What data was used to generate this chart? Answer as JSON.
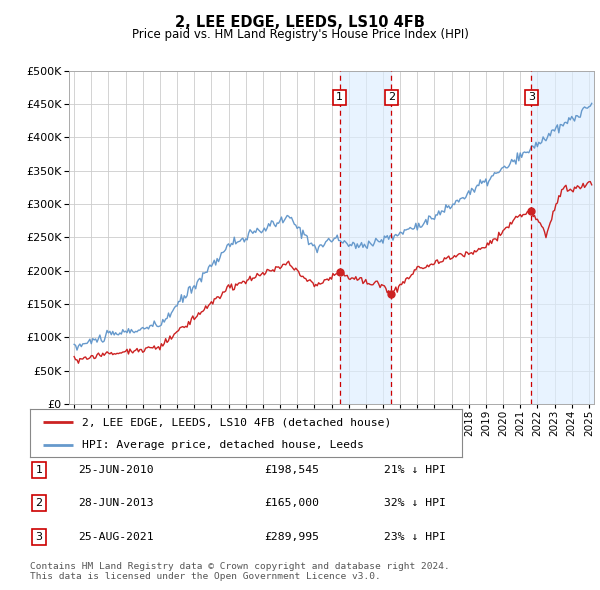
{
  "title": "2, LEE EDGE, LEEDS, LS10 4FB",
  "subtitle": "Price paid vs. HM Land Registry's House Price Index (HPI)",
  "hpi_label": "HPI: Average price, detached house, Leeds",
  "price_label": "2, LEE EDGE, LEEDS, LS10 4FB (detached house)",
  "footer": "Contains HM Land Registry data © Crown copyright and database right 2024.\nThis data is licensed under the Open Government Licence v3.0.",
  "sales": [
    {
      "num": 1,
      "date": "25-JUN-2010",
      "price": "£198,545",
      "pct": "21% ↓ HPI",
      "year": 2010.48
    },
    {
      "num": 2,
      "date": "28-JUN-2013",
      "price": "£165,000",
      "pct": "32% ↓ HPI",
      "year": 2013.48
    },
    {
      "num": 3,
      "date": "25-AUG-2021",
      "price": "£289,995",
      "pct": "23% ↓ HPI",
      "year": 2021.65
    }
  ],
  "sale_prices": [
    198545,
    165000,
    289995
  ],
  "ylim": [
    0,
    500000
  ],
  "yticks": [
    0,
    50000,
    100000,
    150000,
    200000,
    250000,
    300000,
    350000,
    400000,
    450000,
    500000
  ],
  "xlim_start": 1994.7,
  "xlim_end": 2025.3,
  "hpi_color": "#6699cc",
  "price_color": "#cc2222",
  "vline_color": "#cc0000",
  "shade_color": "#ddeeff",
  "background_color": "#ffffff",
  "grid_color": "#cccccc"
}
